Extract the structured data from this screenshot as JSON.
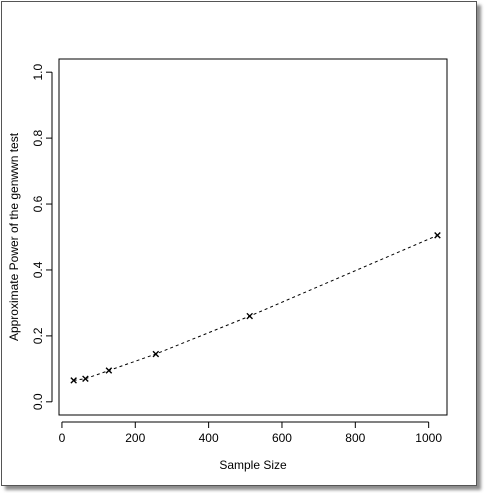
{
  "chart_data": {
    "type": "line",
    "xlabel": "Sample Size",
    "ylabel": "Approximate Power of the genwwn test",
    "xlim": [
      -8,
      1050
    ],
    "ylim": [
      -0.04,
      1.04
    ],
    "xticks": [
      0,
      200,
      400,
      600,
      800,
      1000
    ],
    "yticks": [
      0.0,
      0.2,
      0.4,
      0.6,
      0.8,
      1.0
    ],
    "xtick_labels": [
      "0",
      "200",
      "400",
      "600",
      "800",
      "1000"
    ],
    "ytick_labels": [
      "0.0",
      "0.2",
      "0.4",
      "0.6",
      "0.8",
      "1.0"
    ],
    "grid": false,
    "marker": "x",
    "line_style": "dashed",
    "series": [
      {
        "x": [
          32,
          64,
          128,
          256,
          512,
          1024
        ],
        "y": [
          0.065,
          0.07,
          0.095,
          0.145,
          0.26,
          0.505
        ]
      }
    ]
  }
}
